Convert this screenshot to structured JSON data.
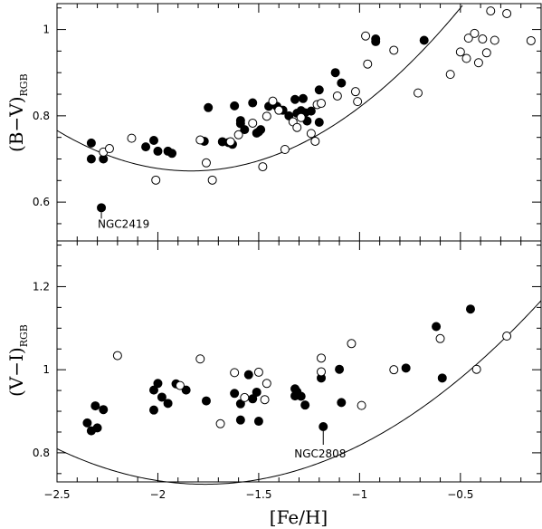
{
  "chart_data": [
    {
      "type": "scatter",
      "xlabel": "[Fe/H]",
      "ylabel": "(B−V)",
      "ylabel_sub": "RGB",
      "xlim": [
        -2.5,
        -0.1
      ],
      "ylim": [
        0.51,
        1.06
      ],
      "x_ticks": [
        -2.5,
        -2,
        -1.5,
        -1,
        -0.5
      ],
      "x_tick_labels": [
        "",
        "",
        "",
        "",
        ""
      ],
      "y_ticks": [
        0.6,
        0.8,
        1.0
      ],
      "y_tick_labels": [
        "0.6",
        "0.8",
        "1"
      ],
      "annotation": {
        "text": "NGC2419",
        "x": -2.28,
        "y": 0.587
      },
      "fit_coeffs": [
        1.386,
        0.778,
        0.212
      ],
      "series": [
        {
          "style": "filled",
          "points": [
            [
              -2.33,
              0.737
            ],
            [
              -2.33,
              0.7
            ],
            [
              -2.27,
              0.7
            ],
            [
              -2.28,
              0.587
            ],
            [
              -2.06,
              0.728
            ],
            [
              -2.02,
              0.743
            ],
            [
              -2.0,
              0.718
            ],
            [
              -1.95,
              0.718
            ],
            [
              -1.93,
              0.713
            ],
            [
              -1.77,
              0.741
            ],
            [
              -1.75,
              0.819
            ],
            [
              -1.68,
              0.74
            ],
            [
              -1.65,
              0.738
            ],
            [
              -1.63,
              0.734
            ],
            [
              -1.62,
              0.823
            ],
            [
              -1.59,
              0.789
            ],
            [
              -1.59,
              0.782
            ],
            [
              -1.57,
              0.768
            ],
            [
              -1.53,
              0.83
            ],
            [
              -1.51,
              0.76
            ],
            [
              -1.5,
              0.763
            ],
            [
              -1.49,
              0.768
            ],
            [
              -1.45,
              0.822
            ],
            [
              -1.41,
              0.822
            ],
            [
              -1.38,
              0.813
            ],
            [
              -1.35,
              0.8
            ],
            [
              -1.32,
              0.838
            ],
            [
              -1.31,
              0.806
            ],
            [
              -1.29,
              0.812
            ],
            [
              -1.28,
              0.84
            ],
            [
              -1.27,
              0.807
            ],
            [
              -1.26,
              0.788
            ],
            [
              -1.24,
              0.811
            ],
            [
              -1.2,
              0.86
            ],
            [
              -1.2,
              0.785
            ],
            [
              -1.12,
              0.9
            ],
            [
              -1.09,
              0.876
            ],
            [
              -0.92,
              0.978
            ],
            [
              -0.92,
              0.972
            ],
            [
              -0.68,
              0.975
            ]
          ]
        },
        {
          "style": "open",
          "points": [
            [
              -2.27,
              0.716
            ],
            [
              -2.24,
              0.724
            ],
            [
              -2.13,
              0.748
            ],
            [
              -2.01,
              0.651
            ],
            [
              -1.79,
              0.744
            ],
            [
              -1.76,
              0.691
            ],
            [
              -1.73,
              0.651
            ],
            [
              -1.64,
              0.74
            ],
            [
              -1.6,
              0.756
            ],
            [
              -1.53,
              0.783
            ],
            [
              -1.48,
              0.682
            ],
            [
              -1.46,
              0.799
            ],
            [
              -1.43,
              0.834
            ],
            [
              -1.4,
              0.813
            ],
            [
              -1.37,
              0.722
            ],
            [
              -1.33,
              0.786
            ],
            [
              -1.31,
              0.773
            ],
            [
              -1.29,
              0.796
            ],
            [
              -1.24,
              0.759
            ],
            [
              -1.22,
              0.741
            ],
            [
              -1.21,
              0.826
            ],
            [
              -1.19,
              0.829
            ],
            [
              -1.11,
              0.846
            ],
            [
              -1.02,
              0.856
            ],
            [
              -1.01,
              0.833
            ],
            [
              -0.97,
              0.985
            ],
            [
              -0.96,
              0.92
            ],
            [
              -0.83,
              0.952
            ],
            [
              -0.71,
              0.853
            ],
            [
              -0.55,
              0.896
            ],
            [
              -0.5,
              0.948
            ],
            [
              -0.47,
              0.933
            ],
            [
              -0.46,
              0.98
            ],
            [
              -0.43,
              0.991
            ],
            [
              -0.41,
              0.923
            ],
            [
              -0.39,
              0.978
            ],
            [
              -0.37,
              0.946
            ],
            [
              -0.35,
              1.043
            ],
            [
              -0.33,
              0.975
            ],
            [
              -0.27,
              1.037
            ],
            [
              -0.15,
              0.974
            ]
          ]
        }
      ]
    },
    {
      "type": "scatter",
      "xlabel": "[Fe/H]",
      "ylabel": "(V−I)",
      "ylabel_sub": "RGB",
      "xlim": [
        -2.5,
        -0.1
      ],
      "ylim": [
        0.73,
        1.31
      ],
      "x_ticks": [
        -2.5,
        -2,
        -1.5,
        -1,
        -0.5
      ],
      "x_tick_labels": [
        "−2.5",
        "−2",
        "−1.5",
        "−1",
        "−0.5"
      ],
      "y_ticks": [
        0.8,
        1.0,
        1.2
      ],
      "y_tick_labels": [
        "0.8",
        "1",
        "1.2"
      ],
      "annotation": {
        "text": "NGC2808",
        "x": -1.18,
        "y": 0.863
      },
      "fit_coeffs": [
        1.221,
        0.562,
        0.159
      ],
      "series": [
        {
          "style": "filled",
          "points": [
            [
              -2.35,
              0.872
            ],
            [
              -2.33,
              0.853
            ],
            [
              -2.31,
              0.913
            ],
            [
              -2.3,
              0.86
            ],
            [
              -2.27,
              0.904
            ],
            [
              -2.02,
              0.951
            ],
            [
              -2.02,
              0.903
            ],
            [
              -2.0,
              0.967
            ],
            [
              -1.98,
              0.934
            ],
            [
              -1.95,
              0.919
            ],
            [
              -1.91,
              0.966
            ],
            [
              -1.86,
              0.951
            ],
            [
              -1.76,
              0.925
            ],
            [
              -1.62,
              0.943
            ],
            [
              -1.59,
              0.918
            ],
            [
              -1.59,
              0.879
            ],
            [
              -1.55,
              0.988
            ],
            [
              -1.53,
              0.93
            ],
            [
              -1.51,
              0.946
            ],
            [
              -1.5,
              0.876
            ],
            [
              -1.32,
              0.954
            ],
            [
              -1.32,
              0.937
            ],
            [
              -1.31,
              0.947
            ],
            [
              -1.29,
              0.936
            ],
            [
              -1.27,
              0.915
            ],
            [
              -1.19,
              0.98
            ],
            [
              -1.18,
              0.863
            ],
            [
              -1.1,
              1.001
            ],
            [
              -1.09,
              0.921
            ],
            [
              -0.77,
              1.004
            ],
            [
              -0.62,
              1.104
            ],
            [
              -0.59,
              0.98
            ],
            [
              -0.45,
              1.146
            ]
          ]
        },
        {
          "style": "open",
          "points": [
            [
              -2.2,
              1.034
            ],
            [
              -1.89,
              0.962
            ],
            [
              -1.79,
              1.026
            ],
            [
              -1.69,
              0.87
            ],
            [
              -1.62,
              0.993
            ],
            [
              -1.57,
              0.933
            ],
            [
              -1.5,
              0.994
            ],
            [
              -1.47,
              0.928
            ],
            [
              -1.46,
              0.967
            ],
            [
              -1.19,
              1.028
            ],
            [
              -1.19,
              0.995
            ],
            [
              -1.04,
              1.063
            ],
            [
              -0.99,
              0.914
            ],
            [
              -0.83,
              1.0
            ],
            [
              -0.6,
              1.075
            ],
            [
              -0.42,
              1.001
            ],
            [
              -0.27,
              1.081
            ]
          ]
        }
      ]
    }
  ]
}
